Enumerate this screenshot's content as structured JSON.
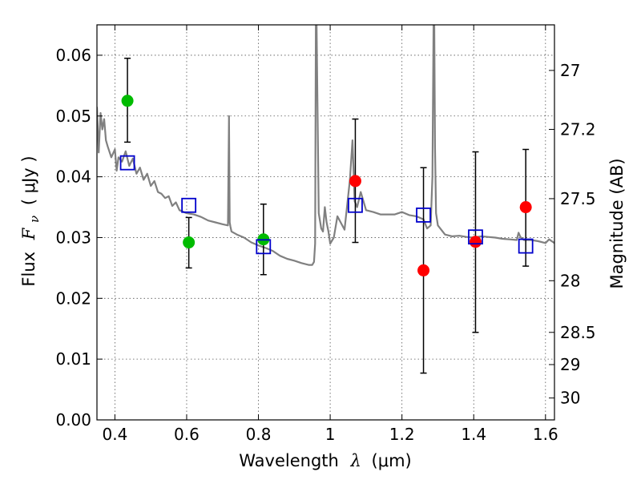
{
  "chart_data": {
    "type": "scatter",
    "xlabel": {
      "prefix": "Wavelength",
      "symbol": "λ",
      "unit": "(μm)"
    },
    "ylabel": {
      "prefix": "Flux",
      "symbol": "F",
      "subscript": "ν",
      "unit": "( μJy )"
    },
    "y2label": "Magnitude (AB)",
    "xlim": [
      0.35,
      1.625
    ],
    "ylim": [
      0.0,
      0.065
    ],
    "grid": true,
    "x_ticks": [
      0.4,
      0.6,
      0.8,
      1.0,
      1.2,
      1.4,
      1.6
    ],
    "x_tick_labels": [
      "0.4",
      "0.6",
      "0.8",
      "1",
      "1.2",
      "1.4",
      "1.6"
    ],
    "y_ticks": [
      0.0,
      0.01,
      0.02,
      0.03,
      0.04,
      0.05,
      0.06
    ],
    "y_tick_labels": [
      "0.00",
      "0.01",
      "0.02",
      "0.03",
      "0.04",
      "0.05",
      "0.06"
    ],
    "y2_ticks": [
      {
        "label": "27",
        "flux": 0.0575
      },
      {
        "label": "27.2",
        "flux": 0.0478
      },
      {
        "label": "27.5",
        "flux": 0.0364
      },
      {
        "label": "28",
        "flux": 0.0229
      },
      {
        "label": "28.5",
        "flux": 0.0144
      },
      {
        "label": "29",
        "flux": 0.0091
      },
      {
        "label": "30",
        "flux": 0.0036
      }
    ],
    "colors": {
      "model": "#808080",
      "green": "#00bb00",
      "red": "#ff0000",
      "square": "#0000cc",
      "errorbar": "#000000",
      "grid": "#555555"
    },
    "series": [
      {
        "marker": "circle",
        "color": "green",
        "points": [
          {
            "x": 0.435,
            "y": 0.0525,
            "ylo": 0.0457,
            "yhi": 0.0595
          },
          {
            "x": 0.606,
            "y": 0.0292,
            "ylo": 0.025,
            "yhi": 0.0333
          },
          {
            "x": 0.814,
            "y": 0.0297,
            "ylo": 0.0239,
            "yhi": 0.0355
          }
        ]
      },
      {
        "marker": "circle",
        "color": "red",
        "points": [
          {
            "x": 1.07,
            "y": 0.0393,
            "ylo": 0.0292,
            "yhi": 0.0495
          },
          {
            "x": 1.26,
            "y": 0.0246,
            "ylo": 0.0077,
            "yhi": 0.0415
          },
          {
            "x": 1.405,
            "y": 0.0293,
            "ylo": 0.0144,
            "yhi": 0.0441
          },
          {
            "x": 1.545,
            "y": 0.035,
            "ylo": 0.0253,
            "yhi": 0.0445
          }
        ]
      },
      {
        "marker": "square",
        "color": "square",
        "points": [
          {
            "x": 0.435,
            "y": 0.0423
          },
          {
            "x": 0.606,
            "y": 0.0353
          },
          {
            "x": 0.814,
            "y": 0.0285
          },
          {
            "x": 1.07,
            "y": 0.0353
          },
          {
            "x": 1.26,
            "y": 0.0337
          },
          {
            "x": 1.405,
            "y": 0.0301
          },
          {
            "x": 1.545,
            "y": 0.0286
          }
        ]
      }
    ],
    "model_spectrum": {
      "x": [
        0.35,
        0.355,
        0.36,
        0.365,
        0.37,
        0.375,
        0.38,
        0.39,
        0.4,
        0.405,
        0.41,
        0.42,
        0.43,
        0.44,
        0.45,
        0.46,
        0.47,
        0.48,
        0.49,
        0.5,
        0.51,
        0.52,
        0.53,
        0.54,
        0.55,
        0.56,
        0.57,
        0.58,
        0.6,
        0.62,
        0.64,
        0.66,
        0.68,
        0.7,
        0.715,
        0.718,
        0.72,
        0.722,
        0.725,
        0.74,
        0.76,
        0.78,
        0.8,
        0.82,
        0.84,
        0.86,
        0.88,
        0.9,
        0.92,
        0.94,
        0.95,
        0.955,
        0.958,
        0.96,
        0.962,
        0.965,
        0.968,
        0.975,
        0.98,
        0.985,
        0.99,
        0.995,
        1.0,
        1.01,
        1.02,
        1.04,
        1.055,
        1.062,
        1.068,
        1.075,
        1.085,
        1.1,
        1.12,
        1.14,
        1.16,
        1.18,
        1.2,
        1.22,
        1.24,
        1.26,
        1.27,
        1.28,
        1.285,
        1.288,
        1.29,
        1.292,
        1.295,
        1.3,
        1.32,
        1.34,
        1.36,
        1.38,
        1.4,
        1.42,
        1.44,
        1.46,
        1.48,
        1.5,
        1.52,
        1.525,
        1.53,
        1.54,
        1.56,
        1.58,
        1.6,
        1.61,
        1.625
      ],
      "y": [
        0.0515,
        0.044,
        0.0505,
        0.0478,
        0.0495,
        0.046,
        0.045,
        0.0432,
        0.0445,
        0.041,
        0.0432,
        0.0425,
        0.0442,
        0.0418,
        0.043,
        0.0405,
        0.0415,
        0.0395,
        0.0405,
        0.0385,
        0.0393,
        0.0375,
        0.0372,
        0.0365,
        0.0368,
        0.0352,
        0.0358,
        0.0345,
        0.034,
        0.0338,
        0.0334,
        0.0328,
        0.0325,
        0.0322,
        0.032,
        0.05,
        0.0325,
        0.0318,
        0.031,
        0.0305,
        0.03,
        0.0292,
        0.0287,
        0.0283,
        0.0278,
        0.027,
        0.0265,
        0.0262,
        0.0258,
        0.0255,
        0.0255,
        0.026,
        0.029,
        0.065,
        0.065,
        0.05,
        0.034,
        0.0315,
        0.031,
        0.035,
        0.0325,
        0.031,
        0.029,
        0.03,
        0.0335,
        0.0313,
        0.0395,
        0.046,
        0.036,
        0.035,
        0.0375,
        0.0345,
        0.0342,
        0.0338,
        0.0338,
        0.0338,
        0.0342,
        0.0337,
        0.0335,
        0.033,
        0.0315,
        0.032,
        0.04,
        0.065,
        0.065,
        0.045,
        0.034,
        0.032,
        0.0305,
        0.0302,
        0.0303,
        0.0301,
        0.03,
        0.0302,
        0.0301,
        0.03,
        0.0298,
        0.0297,
        0.0296,
        0.0308,
        0.0301,
        0.0296,
        0.0296,
        0.0294,
        0.0291,
        0.0297,
        0.0291
      ]
    }
  }
}
